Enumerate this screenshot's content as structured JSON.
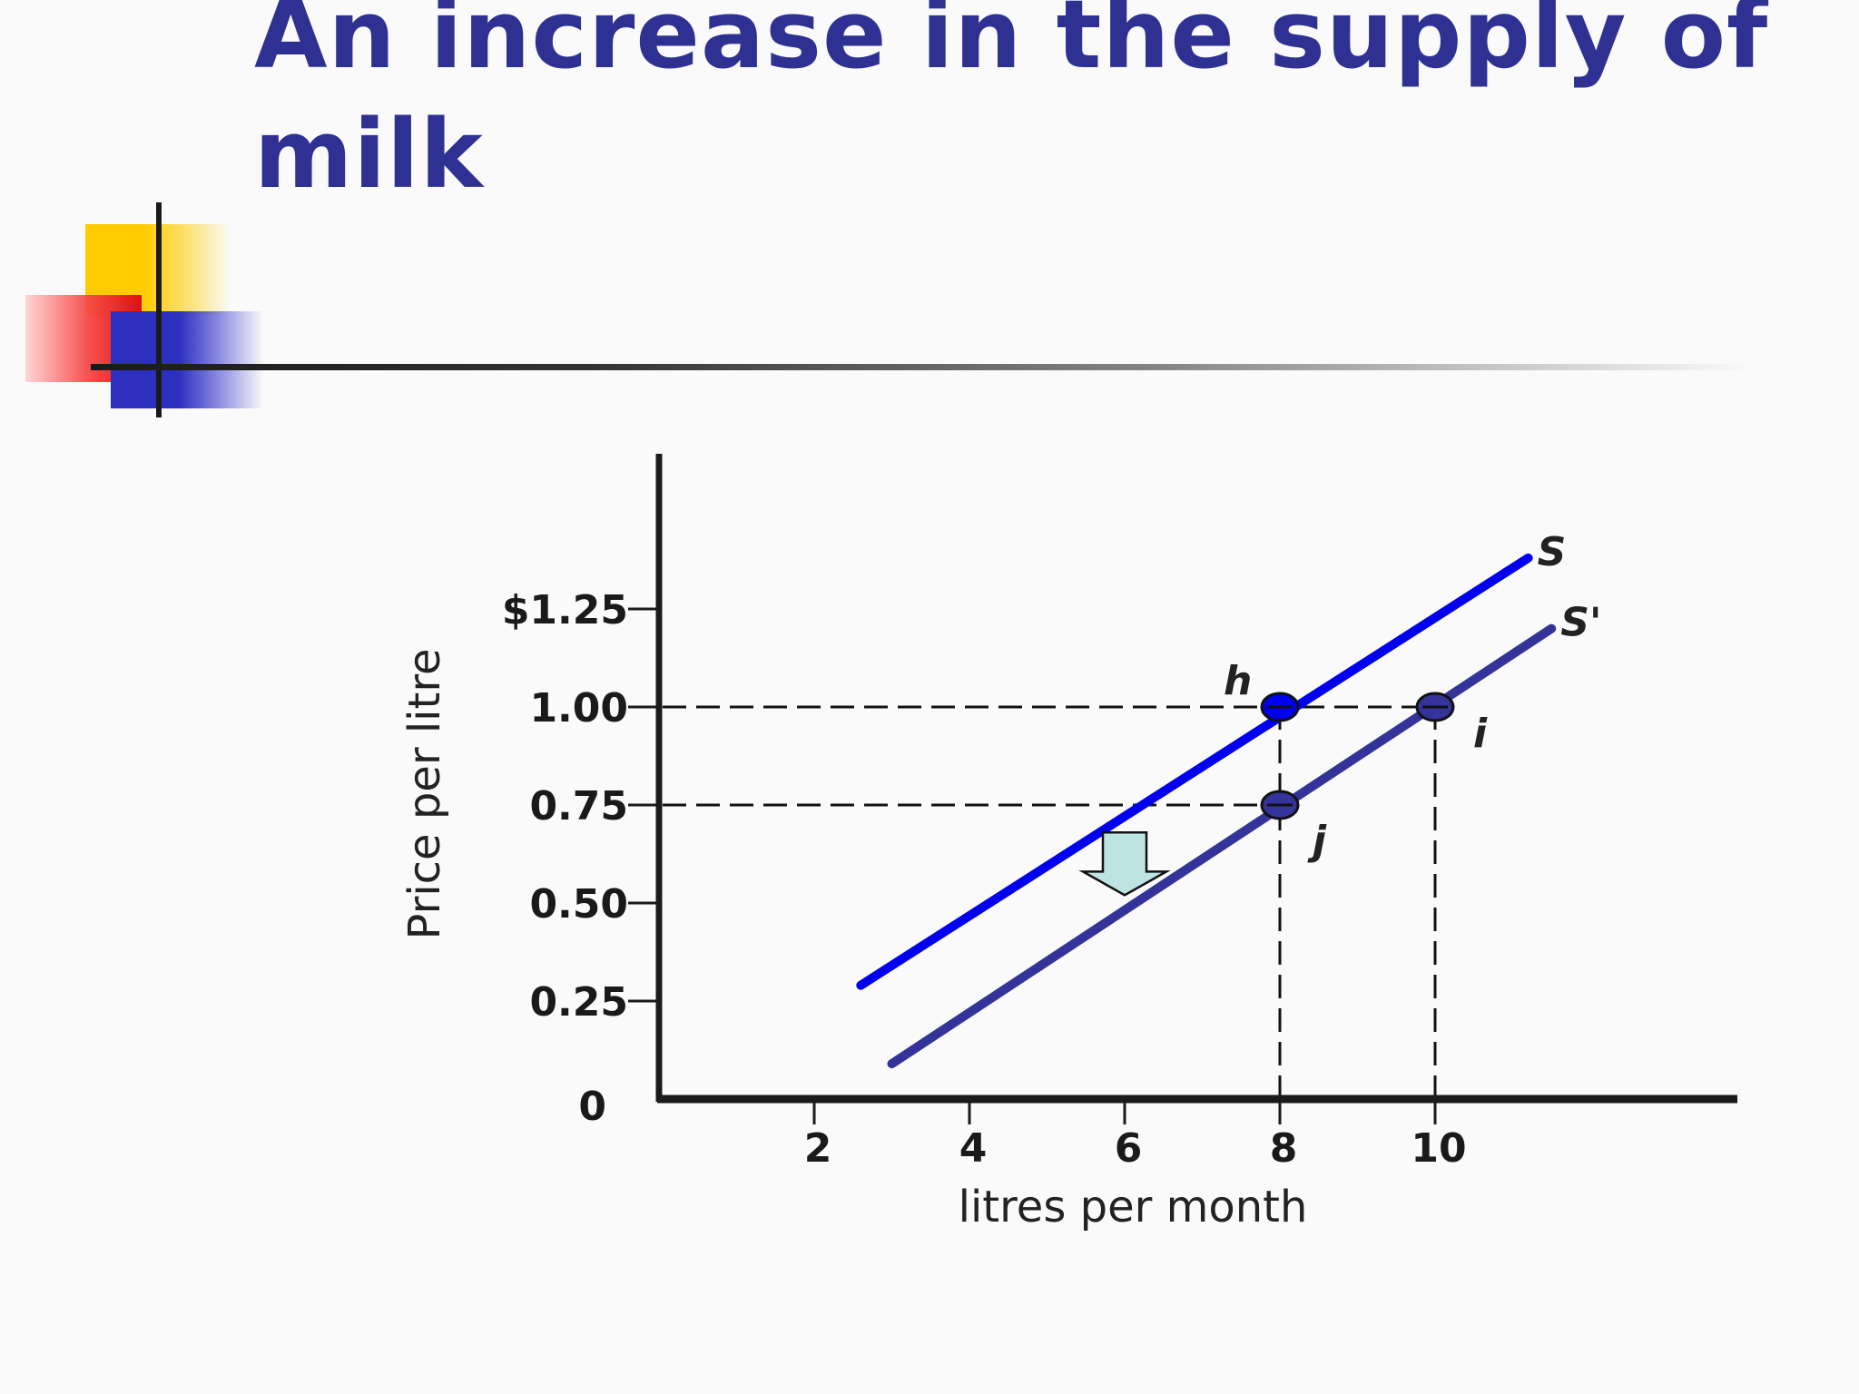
{
  "slide": {
    "title": "An increase in the supply of milk"
  },
  "colors": {
    "title": "#2e3192",
    "supply_s": "#0000ee",
    "supply_s_prime": "#333399",
    "arrow_fill": "#bde3e3"
  },
  "chart_data": {
    "type": "line",
    "title": "",
    "xlabel": "litres per month",
    "ylabel": "Price per litre",
    "xlim": [
      0,
      11.8
    ],
    "ylim": [
      0,
      1.5
    ],
    "x_ticks": [
      "2",
      "4",
      "6",
      "8",
      "10"
    ],
    "x_tick_values": [
      2,
      4,
      6,
      8,
      10
    ],
    "y_ticks": [
      "0",
      "0.25",
      "0.50",
      "0.75",
      "1.00",
      "$1.25"
    ],
    "y_tick_values": [
      0,
      0.25,
      0.5,
      0.75,
      1.0,
      1.25
    ],
    "series": [
      {
        "name": "S",
        "color": "#0000ee",
        "points": [
          [
            2.6,
            0.29
          ],
          [
            11.2,
            1.38
          ]
        ]
      },
      {
        "name": "S'",
        "color": "#333399",
        "points": [
          [
            3.0,
            0.09
          ],
          [
            11.5,
            1.2
          ]
        ]
      }
    ],
    "points": [
      {
        "label": "h",
        "x": 8,
        "y": 1.0,
        "color": "#0000ee"
      },
      {
        "label": "i",
        "x": 10,
        "y": 1.0,
        "color": "#333399"
      },
      {
        "label": "j",
        "x": 8,
        "y": 0.75,
        "color": "#333399"
      }
    ],
    "guides": [
      {
        "type": "h",
        "y": 1.0,
        "x_to": 10
      },
      {
        "type": "h",
        "y": 0.75,
        "x_to": 8
      },
      {
        "type": "v",
        "x": 8,
        "y_to": 1.0
      },
      {
        "type": "v",
        "x": 10,
        "y_to": 1.0
      }
    ],
    "annotations": [
      {
        "type": "shift-arrow",
        "direction": "down",
        "x": 6.0,
        "y_from": 0.68,
        "y_to": 0.52
      }
    ]
  }
}
